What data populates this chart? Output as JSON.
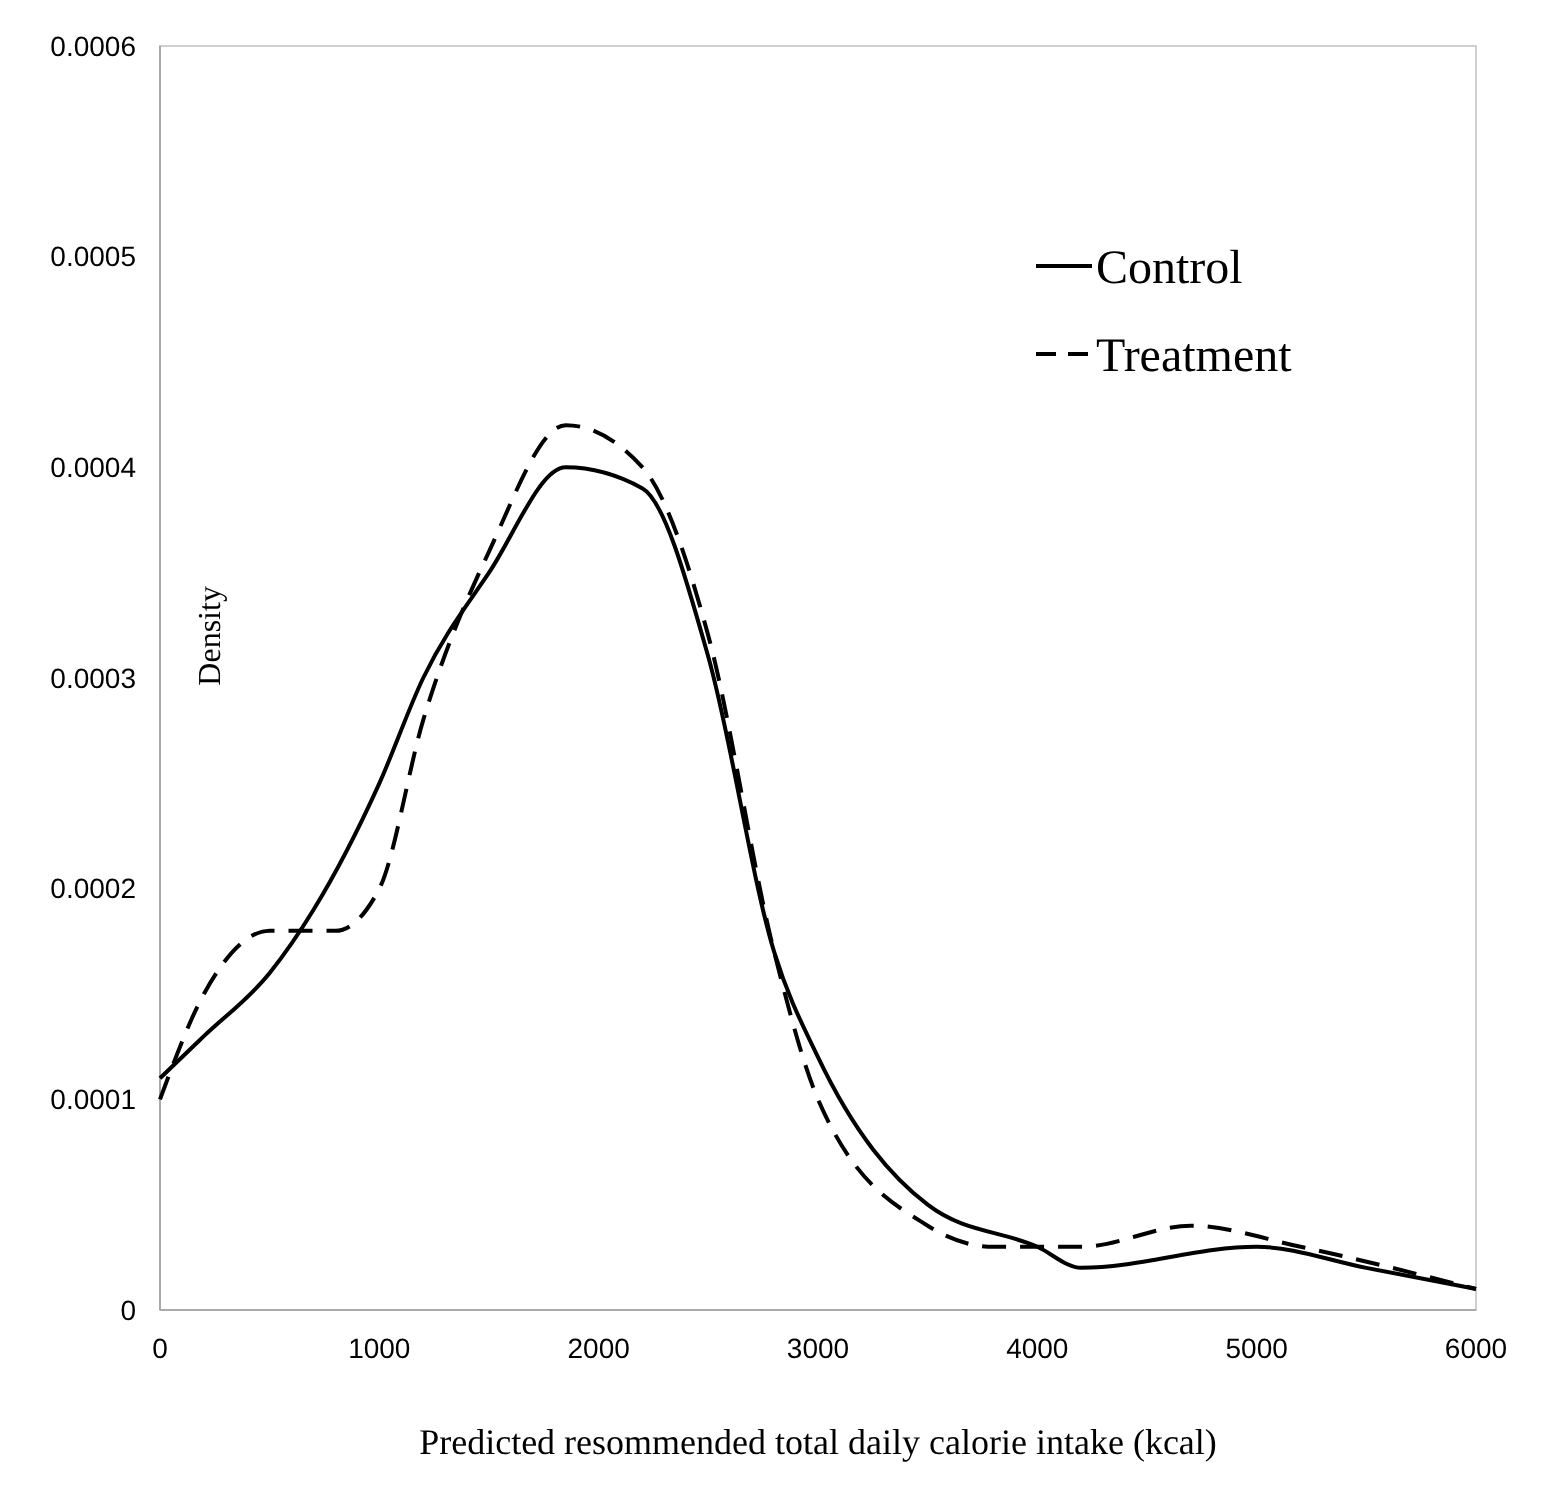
{
  "chart_data": {
    "type": "line",
    "xlabel": "Predicted resommended total daily calorie intake (kcal)",
    "ylabel": "Density",
    "x": [
      0,
      200,
      500,
      700,
      1000,
      1200,
      1500,
      1850,
      2200,
      2500,
      2800,
      3000,
      3500,
      4000,
      4200,
      5000,
      5500,
      6000
    ],
    "series": [
      {
        "name": "Control",
        "color": "#000000",
        "line_style": "solid",
        "values": [
          0.00011,
          0.00013,
          0.00016,
          0.00019,
          0.00025,
          0.0003,
          0.00035,
          0.0004,
          0.00039,
          0.00031,
          0.00017,
          0.00012,
          5e-05,
          3e-05,
          2e-05,
          3e-05,
          2e-05,
          1e-05
        ]
      },
      {
        "name": "Treatment",
        "color": "#000000",
        "line_style": "dashed",
        "x": [
          0,
          200,
          500,
          800,
          1000,
          1200,
          1500,
          1850,
          2200,
          2500,
          2800,
          3000,
          3500,
          3800,
          4200,
          4700,
          5200,
          6000
        ],
        "values": [
          0.0001,
          0.00015,
          0.00018,
          0.00018,
          0.0002,
          0.00028,
          0.00036,
          0.00042,
          0.0004,
          0.00032,
          0.00017,
          0.0001,
          4e-05,
          3e-05,
          3e-05,
          4e-05,
          3e-05,
          1e-05
        ]
      }
    ],
    "xlim": [
      0,
      6000
    ],
    "xticks": [
      0,
      1000,
      2000,
      3000,
      4000,
      5000,
      6000
    ],
    "ylim": [
      0,
      0.0006
    ],
    "yticks": [
      0,
      0.0001,
      0.0002,
      0.0003,
      0.0004,
      0.0005,
      0.0006
    ],
    "legend": "top right",
    "grid": false
  }
}
